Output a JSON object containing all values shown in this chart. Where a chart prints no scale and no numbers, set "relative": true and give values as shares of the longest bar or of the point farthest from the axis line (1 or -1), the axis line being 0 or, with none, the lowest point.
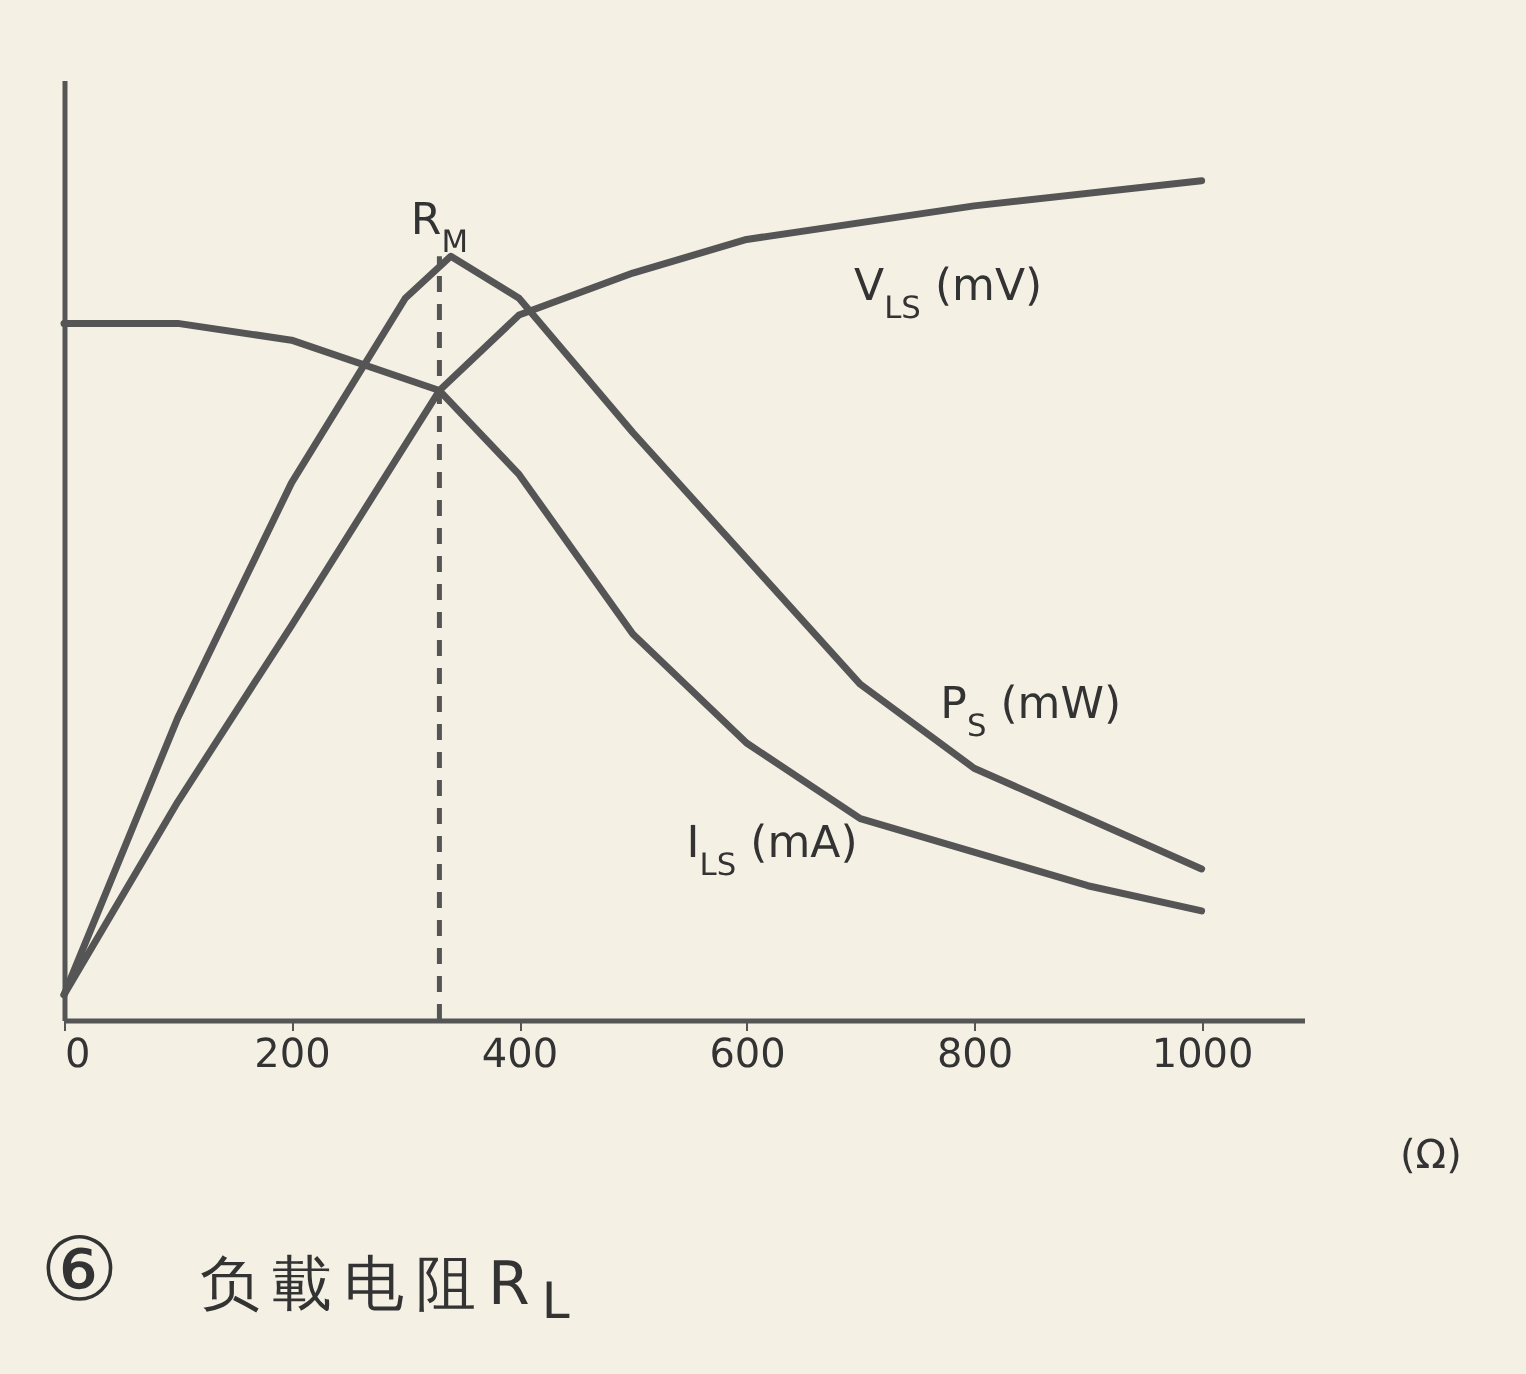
{
  "chart_data": {
    "type": "line",
    "relative": true,
    "xlabel": "负載电阻R$_{L}$",
    "xlim": [
      0,
      1090
    ],
    "xticks": [
      0,
      200,
      400,
      600,
      800,
      1000
    ],
    "grid": false,
    "legend": false,
    "marker": "none",
    "line_style": "solid",
    "series": [
      {
        "name": "V$_{LS}$ (mV)",
        "color": "#555555",
        "x": [
          0,
          100,
          200,
          330,
          400,
          500,
          600,
          800,
          1000
        ],
        "values": [
          0.03,
          0.26,
          0.47,
          0.75,
          0.84,
          0.89,
          0.93,
          0.97,
          1.0
        ]
      },
      {
        "name": "P$_{S}$ (mW)",
        "color": "#555555",
        "x": [
          0,
          100,
          200,
          300,
          340,
          400,
          500,
          600,
          700,
          800,
          900,
          1000
        ],
        "values": [
          0.03,
          0.36,
          0.64,
          0.86,
          0.91,
          0.86,
          0.7,
          0.55,
          0.4,
          0.3,
          0.24,
          0.18
        ]
      },
      {
        "name": "I$_{LS}$ (mA)",
        "color": "#555555",
        "x": [
          0,
          100,
          200,
          330,
          400,
          500,
          600,
          700,
          800,
          900,
          1000
        ],
        "values": [
          0.83,
          0.83,
          0.81,
          0.75,
          0.65,
          0.46,
          0.33,
          0.24,
          0.2,
          0.16,
          0.13
        ]
      }
    ],
    "ref_lines": [
      {
        "axis": "x",
        "value": 330,
        "label": "R$_{M}$",
        "line_style": "dashed",
        "color": "#555555"
      }
    ],
    "annotations": [
      "(Ω)",
      "⑥"
    ]
  }
}
